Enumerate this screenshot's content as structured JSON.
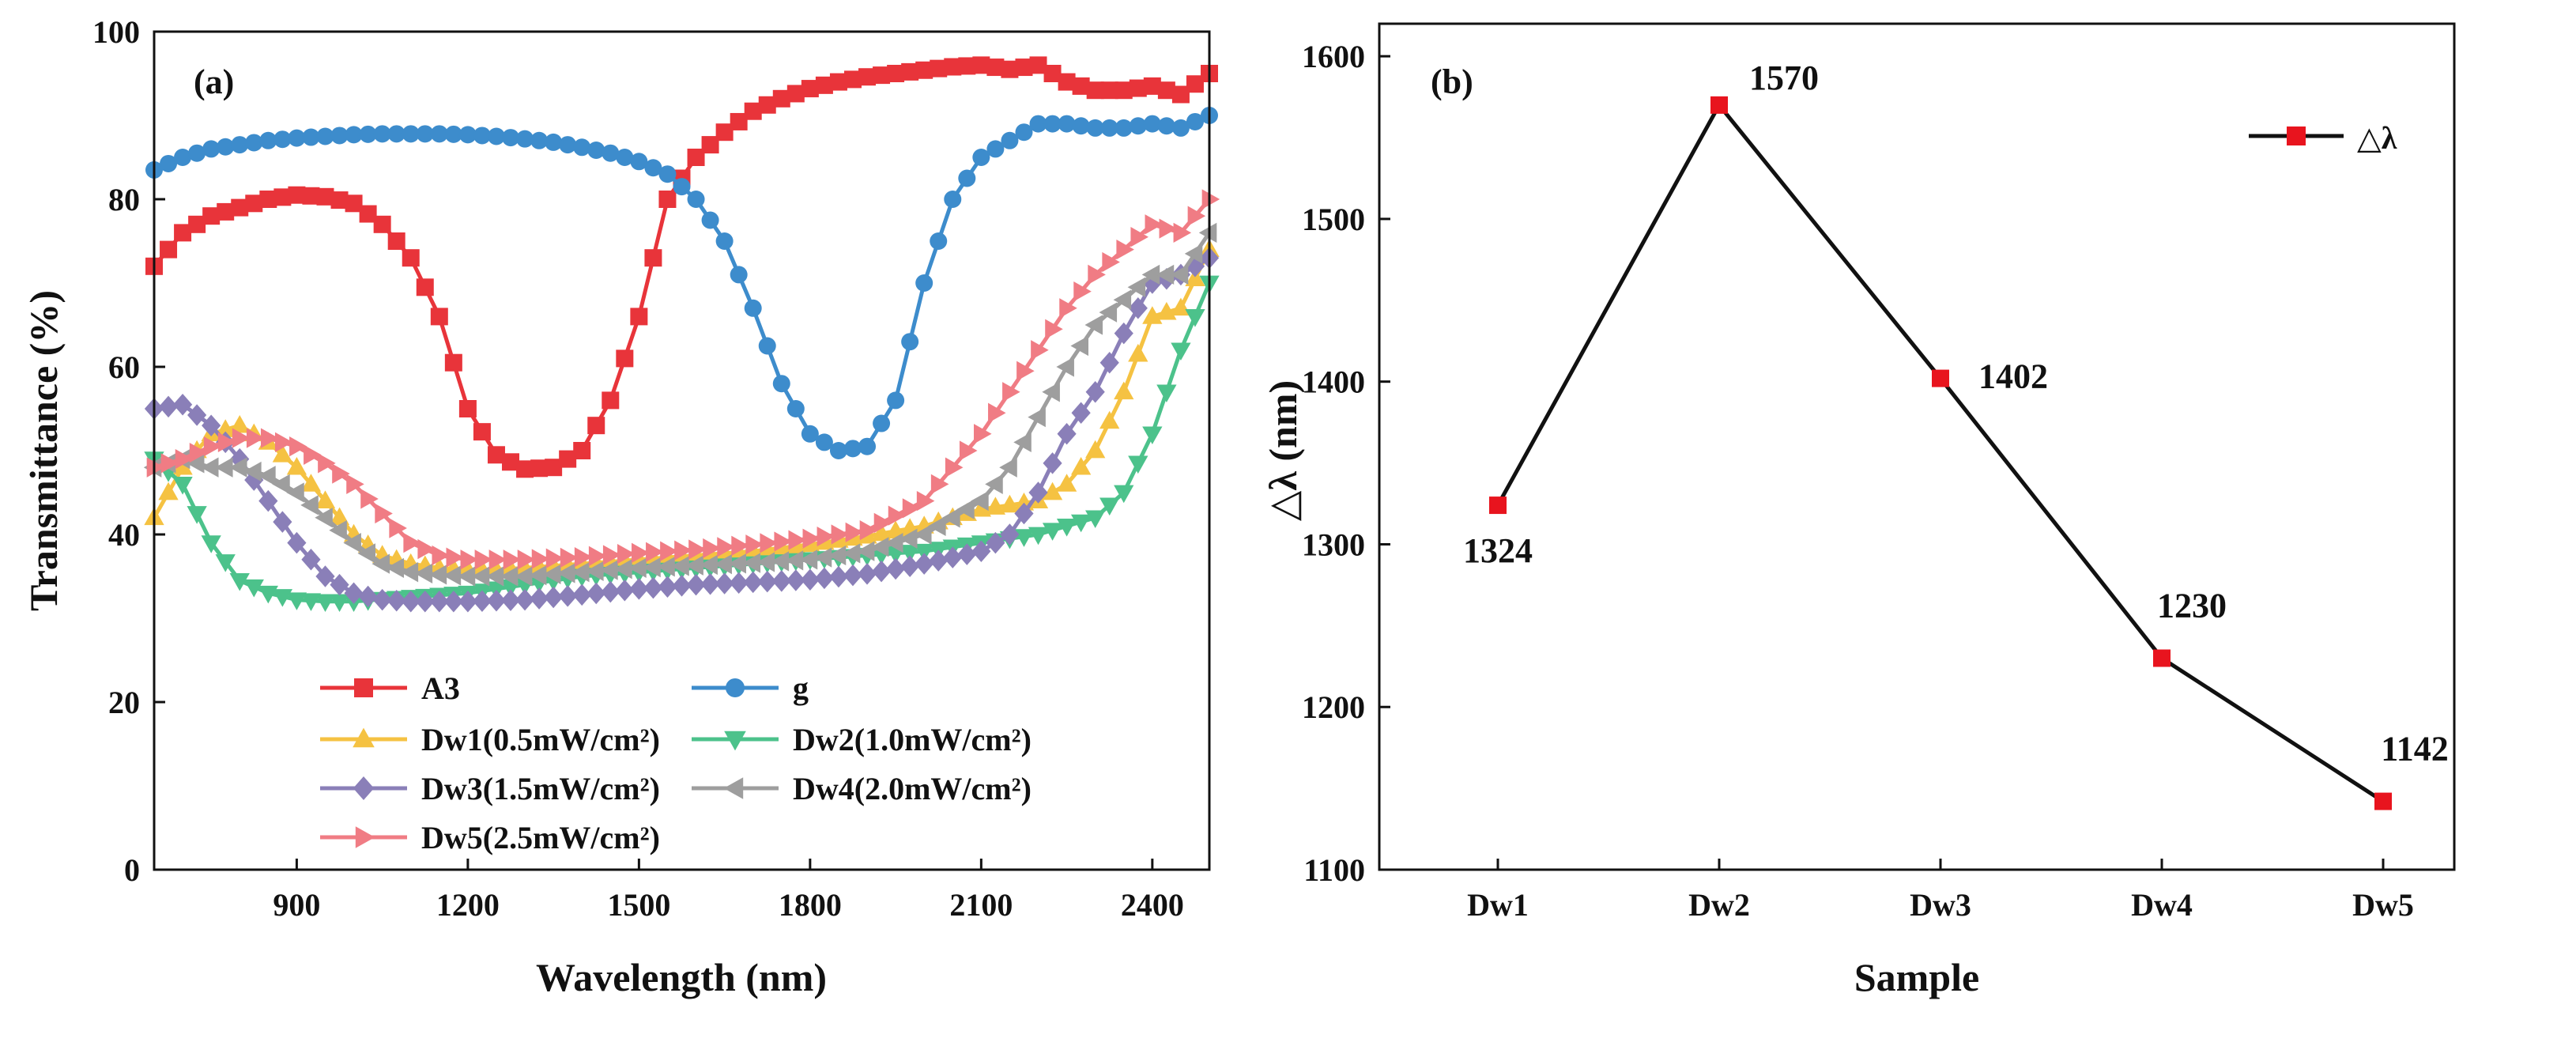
{
  "chart_data": [
    {
      "type": "line",
      "panel_label": "(a)",
      "xlabel": "Wavelength (nm)",
      "ylabel": "Transmittance (%)",
      "xlim": [
        650,
        2500
      ],
      "ylim": [
        0,
        100
      ],
      "xticks": [
        900,
        1200,
        1500,
        1800,
        2100,
        2400
      ],
      "yticks": [
        0,
        20,
        40,
        60,
        80,
        100
      ],
      "grid": false,
      "legend_position": "bottom-left",
      "series": [
        {
          "name": "A3",
          "color": "#e8343a",
          "marker": "square",
          "points": [
            [
              650,
              72
            ],
            [
              700,
              76
            ],
            [
              750,
              78
            ],
            [
              800,
              79
            ],
            [
              850,
              80
            ],
            [
              900,
              80.5
            ],
            [
              950,
              80.3
            ],
            [
              1000,
              79.5
            ],
            [
              1050,
              77
            ],
            [
              1100,
              73
            ],
            [
              1150,
              66
            ],
            [
              1200,
              55
            ],
            [
              1250,
              49.5
            ],
            [
              1300,
              47.8
            ],
            [
              1350,
              48
            ],
            [
              1400,
              50
            ],
            [
              1450,
              56
            ],
            [
              1500,
              66
            ],
            [
              1550,
              80
            ],
            [
              1600,
              85
            ],
            [
              1650,
              88
            ],
            [
              1700,
              90.5
            ],
            [
              1750,
              92
            ],
            [
              1800,
              93.2
            ],
            [
              1850,
              94
            ],
            [
              1900,
              94.6
            ],
            [
              1950,
              95
            ],
            [
              2000,
              95.4
            ],
            [
              2050,
              95.8
            ],
            [
              2100,
              96
            ],
            [
              2150,
              95.5
            ],
            [
              2200,
              96
            ],
            [
              2250,
              94
            ],
            [
              2300,
              93
            ],
            [
              2350,
              93
            ],
            [
              2400,
              93.5
            ],
            [
              2450,
              92.5
            ],
            [
              2500,
              95
            ]
          ]
        },
        {
          "name": "g",
          "color": "#3d8ccc",
          "marker": "circle",
          "points": [
            [
              650,
              83.5
            ],
            [
              700,
              85
            ],
            [
              750,
              86
            ],
            [
              800,
              86.5
            ],
            [
              850,
              87
            ],
            [
              900,
              87.3
            ],
            [
              950,
              87.5
            ],
            [
              1000,
              87.7
            ],
            [
              1050,
              87.8
            ],
            [
              1100,
              87.8
            ],
            [
              1150,
              87.8
            ],
            [
              1200,
              87.7
            ],
            [
              1250,
              87.5
            ],
            [
              1300,
              87.2
            ],
            [
              1350,
              86.8
            ],
            [
              1400,
              86.2
            ],
            [
              1450,
              85.5
            ],
            [
              1500,
              84.5
            ],
            [
              1550,
              83
            ],
            [
              1600,
              80
            ],
            [
              1650,
              75
            ],
            [
              1700,
              67
            ],
            [
              1750,
              58
            ],
            [
              1800,
              52
            ],
            [
              1850,
              50
            ],
            [
              1900,
              50.5
            ],
            [
              1950,
              56
            ],
            [
              2000,
              70
            ],
            [
              2050,
              80
            ],
            [
              2100,
              85
            ],
            [
              2150,
              87
            ],
            [
              2200,
              89
            ],
            [
              2250,
              89
            ],
            [
              2300,
              88.5
            ],
            [
              2350,
              88.5
            ],
            [
              2400,
              89
            ],
            [
              2450,
              88.5
            ],
            [
              2500,
              90
            ]
          ]
        },
        {
          "name": "Dw1(0.5mW/cm²)",
          "color": "#f5c242",
          "marker": "triangle-up",
          "points": [
            [
              650,
              42
            ],
            [
              700,
              48
            ],
            [
              750,
              52
            ],
            [
              800,
              53
            ],
            [
              850,
              51
            ],
            [
              900,
              48
            ],
            [
              950,
              44
            ],
            [
              1000,
              40
            ],
            [
              1050,
              37.5
            ],
            [
              1100,
              36.5
            ],
            [
              1150,
              36
            ],
            [
              1200,
              35.8
            ],
            [
              1250,
              35.8
            ],
            [
              1300,
              36
            ],
            [
              1400,
              36.5
            ],
            [
              1500,
              37
            ],
            [
              1600,
              37.5
            ],
            [
              1700,
              38
            ],
            [
              1800,
              38.8
            ],
            [
              1900,
              39.8
            ],
            [
              2000,
              41
            ],
            [
              2100,
              43
            ],
            [
              2200,
              44
            ],
            [
              2250,
              46
            ],
            [
              2300,
              50
            ],
            [
              2350,
              57
            ],
            [
              2400,
              66
            ],
            [
              2450,
              67
            ],
            [
              2500,
              74
            ]
          ]
        },
        {
          "name": "Dw2(1.0mW/cm²)",
          "color": "#4cc28b",
          "marker": "triangle-down",
          "points": [
            [
              650,
              49
            ],
            [
              700,
              46
            ],
            [
              750,
              39
            ],
            [
              800,
              34.5
            ],
            [
              850,
              33
            ],
            [
              900,
              32.2
            ],
            [
              950,
              32
            ],
            [
              1000,
              32
            ],
            [
              1100,
              32.5
            ],
            [
              1200,
              33
            ],
            [
              1300,
              34
            ],
            [
              1400,
              35
            ],
            [
              1500,
              35.5
            ],
            [
              1600,
              36
            ],
            [
              1700,
              36.5
            ],
            [
              1800,
              37
            ],
            [
              1900,
              37.5
            ],
            [
              2000,
              38
            ],
            [
              2100,
              39
            ],
            [
              2200,
              40
            ],
            [
              2300,
              42
            ],
            [
              2350,
              45
            ],
            [
              2400,
              52
            ],
            [
              2450,
              62
            ],
            [
              2500,
              70
            ]
          ]
        },
        {
          "name": "Dw3(1.5mW/cm²)",
          "color": "#8a7fb8",
          "marker": "diamond",
          "points": [
            [
              650,
              55
            ],
            [
              700,
              55.5
            ],
            [
              750,
              53
            ],
            [
              800,
              49
            ],
            [
              850,
              44
            ],
            [
              900,
              39
            ],
            [
              950,
              35
            ],
            [
              1000,
              33
            ],
            [
              1050,
              32.2
            ],
            [
              1100,
              32
            ],
            [
              1200,
              32
            ],
            [
              1300,
              32.2
            ],
            [
              1400,
              32.8
            ],
            [
              1500,
              33.5
            ],
            [
              1600,
              34
            ],
            [
              1700,
              34.3
            ],
            [
              1800,
              34.6
            ],
            [
              1900,
              35.3
            ],
            [
              2000,
              36.5
            ],
            [
              2100,
              38
            ],
            [
              2150,
              40
            ],
            [
              2200,
              45
            ],
            [
              2250,
              52
            ],
            [
              2300,
              57
            ],
            [
              2350,
              64
            ],
            [
              2400,
              70
            ],
            [
              2450,
              71
            ],
            [
              2500,
              73
            ]
          ]
        },
        {
          "name": "Dw4(2.0mW/cm²)",
          "color": "#9e9e9e",
          "marker": "triangle-left",
          "points": [
            [
              650,
              48
            ],
            [
              700,
              49
            ],
            [
              750,
              48
            ],
            [
              800,
              48
            ],
            [
              850,
              47
            ],
            [
              900,
              45
            ],
            [
              950,
              42
            ],
            [
              1000,
              39
            ],
            [
              1050,
              36.5
            ],
            [
              1100,
              35.5
            ],
            [
              1150,
              35.2
            ],
            [
              1200,
              35
            ],
            [
              1300,
              35
            ],
            [
              1400,
              35.5
            ],
            [
              1500,
              36
            ],
            [
              1600,
              36.3
            ],
            [
              1700,
              36.6
            ],
            [
              1800,
              37
            ],
            [
              1900,
              38
            ],
            [
              2000,
              40
            ],
            [
              2100,
              44
            ],
            [
              2150,
              48
            ],
            [
              2200,
              54
            ],
            [
              2250,
              60
            ],
            [
              2300,
              65
            ],
            [
              2350,
              68
            ],
            [
              2400,
              71
            ],
            [
              2450,
              71
            ],
            [
              2500,
              76
            ]
          ]
        },
        {
          "name": "Dw5(2.5mW/cm²)",
          "color": "#f07c84",
          "marker": "triangle-right",
          "points": [
            [
              650,
              48
            ],
            [
              700,
              49
            ],
            [
              750,
              50.5
            ],
            [
              800,
              51.5
            ],
            [
              850,
              51.5
            ],
            [
              900,
              50.5
            ],
            [
              950,
              48.5
            ],
            [
              1000,
              46
            ],
            [
              1050,
              42.5
            ],
            [
              1100,
              39
            ],
            [
              1150,
              37.5
            ],
            [
              1200,
              37
            ],
            [
              1300,
              37
            ],
            [
              1400,
              37.3
            ],
            [
              1500,
              37.8
            ],
            [
              1600,
              38.2
            ],
            [
              1700,
              38.8
            ],
            [
              1800,
              39.5
            ],
            [
              1900,
              40.5
            ],
            [
              2000,
              44
            ],
            [
              2050,
              48
            ],
            [
              2100,
              52
            ],
            [
              2150,
              57
            ],
            [
              2200,
              62
            ],
            [
              2250,
              67
            ],
            [
              2300,
              71
            ],
            [
              2350,
              74
            ],
            [
              2400,
              77
            ],
            [
              2450,
              76
            ],
            [
              2500,
              80
            ]
          ]
        }
      ]
    },
    {
      "type": "line",
      "panel_label": "(b)",
      "xlabel": "Sample",
      "ylabel": "△λ (nm)",
      "categories": [
        "Dw1",
        "Dw2",
        "Dw3",
        "Dw4",
        "Dw5"
      ],
      "ylim": [
        1100,
        1620
      ],
      "yticks": [
        1100,
        1200,
        1300,
        1400,
        1500,
        1600
      ],
      "grid": false,
      "legend_position": "top-right",
      "series": [
        {
          "name": "△λ",
          "color": "#e8141e",
          "line_color": "#111111",
          "marker": "square",
          "values": [
            1324,
            1570,
            1402,
            1230,
            1142
          ],
          "labels": [
            "1324",
            "1570",
            "1402",
            "1230",
            "1142"
          ]
        }
      ]
    }
  ]
}
